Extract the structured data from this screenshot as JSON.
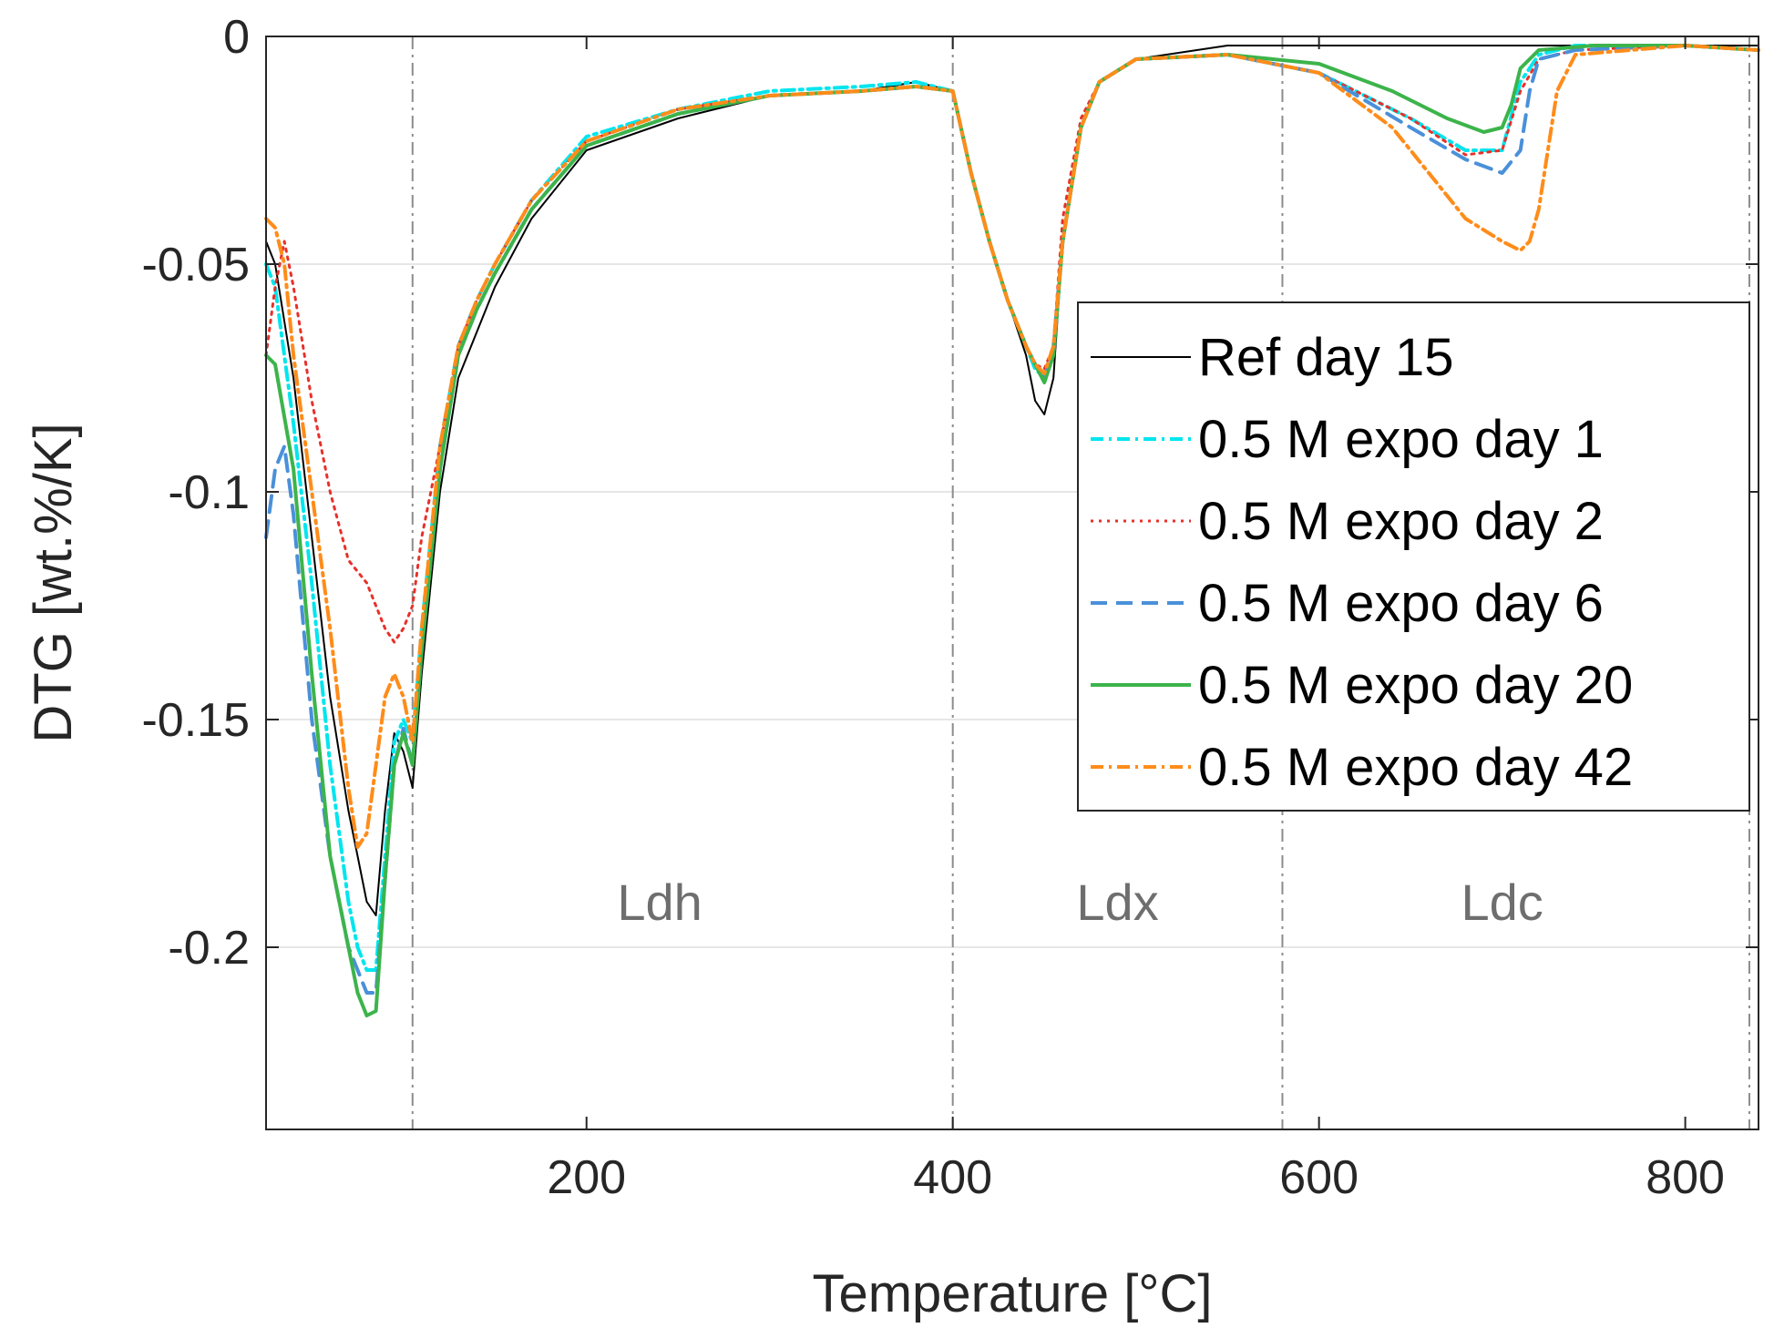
{
  "chart_data": {
    "type": "line",
    "title": "",
    "xlabel": "Temperature [°C]",
    "ylabel": "DTG [wt.%/K]",
    "xlim": [
      25,
      840
    ],
    "ylim": [
      -0.24,
      0
    ],
    "grid": true,
    "legend_position": "right",
    "x_ticks": [
      {
        "value": 200,
        "label": "200"
      },
      {
        "value": 400,
        "label": "400"
      },
      {
        "value": 600,
        "label": "600"
      },
      {
        "value": 800,
        "label": "800"
      }
    ],
    "y_ticks": [
      {
        "value": 0,
        "label": "0"
      },
      {
        "value": -0.05,
        "label": "-0.05"
      },
      {
        "value": -0.1,
        "label": "-0.1"
      },
      {
        "value": -0.15,
        "label": "-0.15"
      },
      {
        "value": -0.2,
        "label": "-0.2"
      }
    ],
    "boundaries": [
      {
        "x": 105,
        "label": "Ldh",
        "label_x": 240
      },
      {
        "x": 400,
        "label": "Ldx",
        "label_x": 490
      },
      {
        "x": 580,
        "label": "Ldc",
        "label_x": 700
      },
      {
        "x": 835,
        "label": "",
        "label_x": 0
      }
    ],
    "series": [
      {
        "name": "Ref day 15",
        "color": "#000000",
        "dash": "solid",
        "width": 2,
        "x": [
          25,
          30,
          40,
          50,
          60,
          70,
          75,
          80,
          85,
          90,
          95,
          100,
          105,
          110,
          120,
          130,
          140,
          150,
          170,
          200,
          250,
          300,
          350,
          380,
          400,
          410,
          420,
          430,
          440,
          445,
          450,
          455,
          460,
          470,
          480,
          500,
          550,
          600,
          650,
          700,
          750,
          800,
          840
        ],
        "y": [
          -0.045,
          -0.05,
          -0.075,
          -0.11,
          -0.145,
          -0.17,
          -0.18,
          -0.19,
          -0.193,
          -0.17,
          -0.153,
          -0.157,
          -0.165,
          -0.14,
          -0.1,
          -0.075,
          -0.065,
          -0.055,
          -0.04,
          -0.025,
          -0.018,
          -0.013,
          -0.012,
          -0.01,
          -0.012,
          -0.03,
          -0.045,
          -0.058,
          -0.07,
          -0.08,
          -0.083,
          -0.075,
          -0.045,
          -0.02,
          -0.01,
          -0.005,
          -0.002,
          -0.002,
          -0.002,
          -0.002,
          -0.002,
          -0.002,
          -0.002
        ]
      },
      {
        "name": "0.5 M expo day 1",
        "color": "#00e5ee",
        "dash": "dashdot",
        "width": 4,
        "x": [
          25,
          30,
          40,
          50,
          60,
          70,
          75,
          80,
          85,
          90,
          95,
          100,
          105,
          110,
          120,
          130,
          140,
          150,
          170,
          200,
          250,
          300,
          350,
          380,
          400,
          410,
          420,
          430,
          440,
          445,
          450,
          455,
          460,
          470,
          480,
          500,
          550,
          600,
          650,
          680,
          700,
          710,
          720,
          740,
          800,
          840
        ],
        "y": [
          -0.05,
          -0.055,
          -0.085,
          -0.12,
          -0.16,
          -0.19,
          -0.2,
          -0.205,
          -0.205,
          -0.18,
          -0.155,
          -0.15,
          -0.155,
          -0.13,
          -0.09,
          -0.068,
          -0.058,
          -0.05,
          -0.036,
          -0.022,
          -0.016,
          -0.012,
          -0.011,
          -0.01,
          -0.012,
          -0.03,
          -0.045,
          -0.058,
          -0.068,
          -0.073,
          -0.075,
          -0.07,
          -0.045,
          -0.02,
          -0.01,
          -0.005,
          -0.004,
          -0.008,
          -0.018,
          -0.025,
          -0.025,
          -0.01,
          -0.004,
          -0.002,
          -0.002,
          -0.003
        ]
      },
      {
        "name": "0.5 M expo day 2",
        "color": "#e8302a",
        "dash": "dotted",
        "width": 3,
        "x": [
          25,
          30,
          35,
          40,
          50,
          60,
          70,
          80,
          90,
          95,
          100,
          105,
          110,
          120,
          130,
          140,
          150,
          170,
          200,
          250,
          300,
          350,
          380,
          400,
          410,
          420,
          430,
          440,
          445,
          450,
          455,
          460,
          470,
          480,
          500,
          550,
          600,
          650,
          680,
          700,
          710,
          720,
          740,
          800,
          840
        ],
        "y": [
          -0.07,
          -0.055,
          -0.045,
          -0.055,
          -0.08,
          -0.1,
          -0.115,
          -0.12,
          -0.13,
          -0.133,
          -0.13,
          -0.125,
          -0.11,
          -0.09,
          -0.068,
          -0.058,
          -0.05,
          -0.036,
          -0.023,
          -0.016,
          -0.013,
          -0.012,
          -0.011,
          -0.012,
          -0.03,
          -0.045,
          -0.058,
          -0.068,
          -0.072,
          -0.073,
          -0.068,
          -0.04,
          -0.018,
          -0.01,
          -0.005,
          -0.004,
          -0.008,
          -0.018,
          -0.026,
          -0.025,
          -0.012,
          -0.005,
          -0.003,
          -0.002,
          -0.003
        ]
      },
      {
        "name": "0.5 M expo day 6",
        "color": "#4a90d9",
        "dash": "dashed",
        "width": 4,
        "x": [
          25,
          30,
          35,
          40,
          50,
          60,
          70,
          80,
          85,
          90,
          95,
          100,
          105,
          110,
          120,
          130,
          140,
          150,
          170,
          200,
          250,
          300,
          350,
          380,
          400,
          410,
          420,
          430,
          440,
          445,
          450,
          455,
          460,
          470,
          480,
          500,
          550,
          600,
          650,
          680,
          700,
          710,
          715,
          720,
          740,
          800,
          840
        ],
        "y": [
          -0.11,
          -0.095,
          -0.09,
          -0.105,
          -0.15,
          -0.18,
          -0.2,
          -0.21,
          -0.21,
          -0.185,
          -0.16,
          -0.152,
          -0.16,
          -0.135,
          -0.095,
          -0.07,
          -0.06,
          -0.052,
          -0.038,
          -0.024,
          -0.017,
          -0.013,
          -0.012,
          -0.011,
          -0.012,
          -0.03,
          -0.045,
          -0.058,
          -0.068,
          -0.072,
          -0.075,
          -0.068,
          -0.045,
          -0.02,
          -0.01,
          -0.005,
          -0.004,
          -0.008,
          -0.02,
          -0.027,
          -0.03,
          -0.025,
          -0.012,
          -0.005,
          -0.003,
          -0.002,
          -0.003
        ]
      },
      {
        "name": "0.5 M expo day 20",
        "color": "#3cb44b",
        "dash": "solid",
        "width": 4,
        "x": [
          25,
          30,
          40,
          50,
          60,
          70,
          75,
          80,
          85,
          90,
          95,
          100,
          105,
          110,
          120,
          130,
          140,
          150,
          170,
          200,
          250,
          300,
          350,
          380,
          400,
          410,
          420,
          430,
          440,
          445,
          450,
          455,
          460,
          470,
          480,
          500,
          550,
          600,
          640,
          670,
          690,
          700,
          705,
          710,
          720,
          750,
          800,
          840
        ],
        "y": [
          -0.07,
          -0.072,
          -0.095,
          -0.14,
          -0.18,
          -0.2,
          -0.21,
          -0.215,
          -0.214,
          -0.185,
          -0.16,
          -0.153,
          -0.16,
          -0.135,
          -0.095,
          -0.07,
          -0.06,
          -0.052,
          -0.038,
          -0.024,
          -0.017,
          -0.013,
          -0.012,
          -0.011,
          -0.012,
          -0.03,
          -0.045,
          -0.058,
          -0.068,
          -0.072,
          -0.076,
          -0.07,
          -0.045,
          -0.02,
          -0.01,
          -0.005,
          -0.004,
          -0.006,
          -0.012,
          -0.018,
          -0.021,
          -0.02,
          -0.015,
          -0.007,
          -0.003,
          -0.002,
          -0.002,
          -0.003
        ]
      },
      {
        "name": "0.5 M expo day 42",
        "color": "#ff8c1a",
        "dash": "dashdot",
        "width": 4,
        "x": [
          25,
          30,
          35,
          40,
          50,
          60,
          70,
          75,
          80,
          85,
          90,
          95,
          100,
          105,
          110,
          120,
          130,
          140,
          150,
          170,
          200,
          250,
          300,
          350,
          380,
          400,
          410,
          420,
          430,
          440,
          445,
          450,
          455,
          460,
          470,
          480,
          500,
          550,
          600,
          640,
          660,
          680,
          700,
          710,
          715,
          720,
          730,
          740,
          800,
          840
        ],
        "y": [
          -0.04,
          -0.042,
          -0.05,
          -0.07,
          -0.1,
          -0.13,
          -0.165,
          -0.178,
          -0.175,
          -0.16,
          -0.145,
          -0.14,
          -0.145,
          -0.155,
          -0.13,
          -0.09,
          -0.068,
          -0.058,
          -0.05,
          -0.036,
          -0.023,
          -0.016,
          -0.013,
          -0.012,
          -0.011,
          -0.012,
          -0.03,
          -0.045,
          -0.058,
          -0.068,
          -0.072,
          -0.074,
          -0.068,
          -0.045,
          -0.02,
          -0.01,
          -0.005,
          -0.004,
          -0.008,
          -0.02,
          -0.03,
          -0.04,
          -0.045,
          -0.047,
          -0.045,
          -0.038,
          -0.012,
          -0.004,
          -0.002,
          -0.003
        ]
      }
    ]
  }
}
